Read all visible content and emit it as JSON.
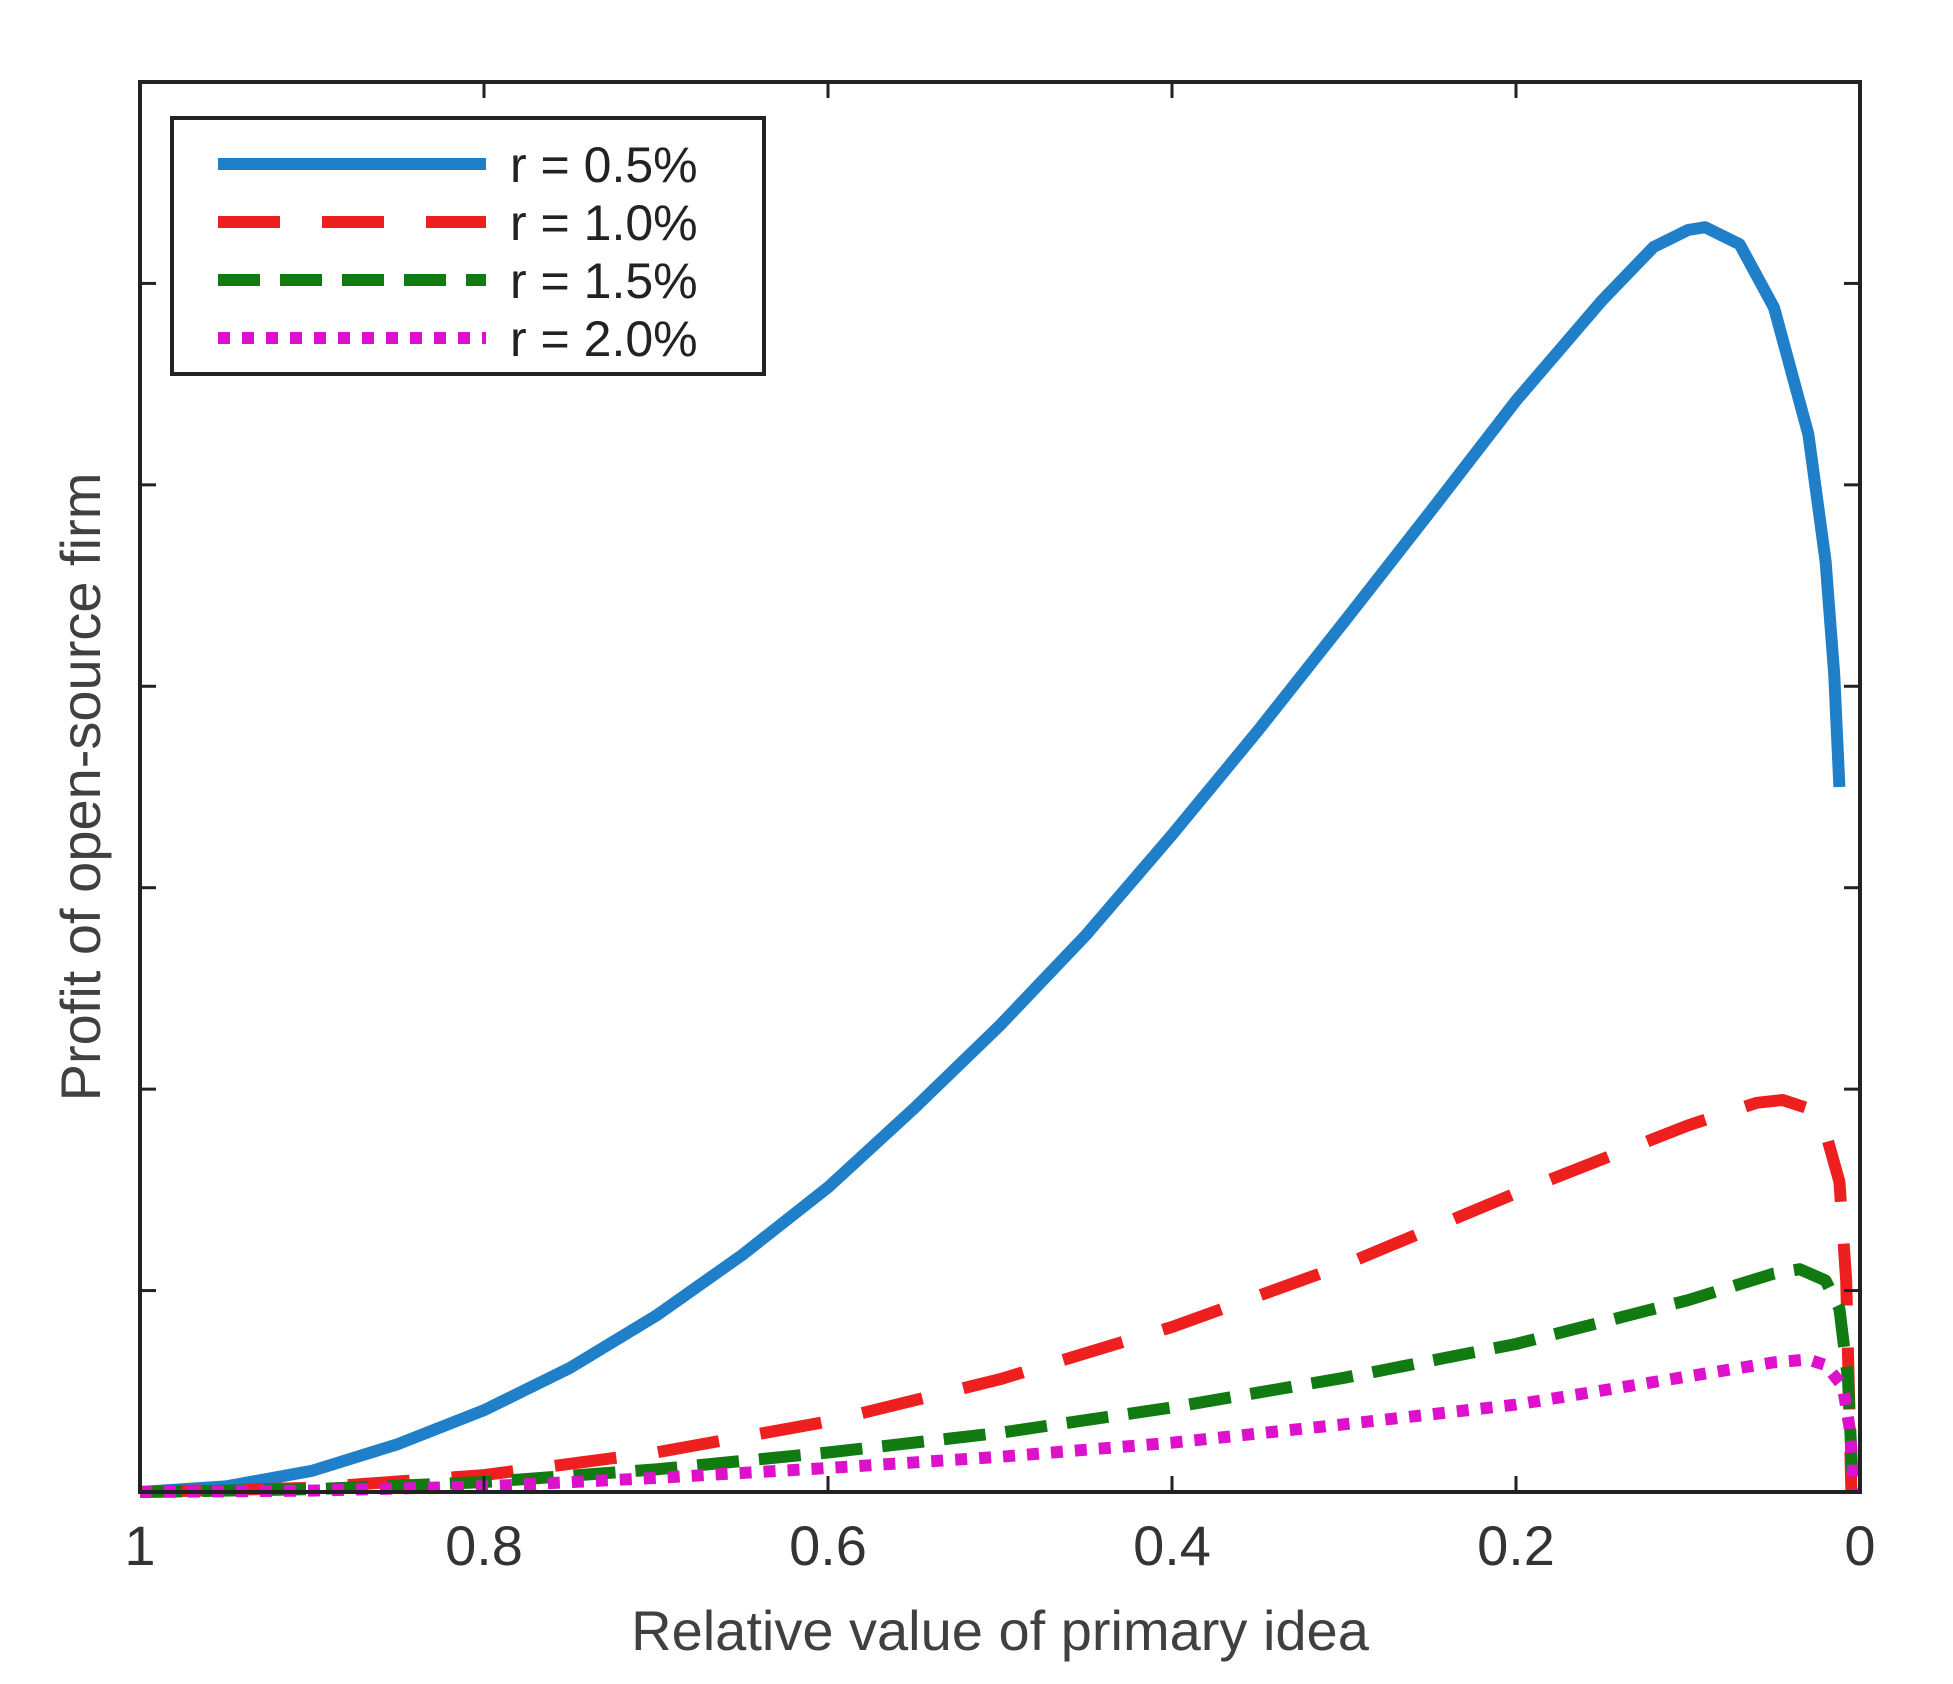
{
  "chart_data": {
    "type": "line",
    "title": "",
    "xlabel": "Relative value of primary idea",
    "ylabel": "Profit of open-source firm",
    "xlim": [
      1,
      0
    ],
    "x_reversed": true,
    "ylim": [
      0,
      1
    ],
    "y_ticks_unlabeled": true,
    "y_tick_count": 7,
    "grid": false,
    "legend_position": "top-left",
    "x_ticks": [
      {
        "value": 1,
        "label": "1"
      },
      {
        "value": 0.8,
        "label": "0.8"
      },
      {
        "value": 0.6,
        "label": "0.6"
      },
      {
        "value": 0.4,
        "label": "0.4"
      },
      {
        "value": 0.2,
        "label": "0.2"
      },
      {
        "value": 0,
        "label": "0"
      }
    ],
    "series": [
      {
        "name": "r = 0.5%",
        "color": "#1f7fc9",
        "style": "solid",
        "x": [
          1.0,
          0.95,
          0.9,
          0.85,
          0.8,
          0.75,
          0.7,
          0.65,
          0.6,
          0.55,
          0.5,
          0.45,
          0.4,
          0.35,
          0.3,
          0.25,
          0.2,
          0.15,
          0.12,
          0.1,
          0.09,
          0.07,
          0.05,
          0.03,
          0.02,
          0.015,
          0.012
        ],
        "values": [
          0.0,
          0.004,
          0.015,
          0.034,
          0.058,
          0.088,
          0.125,
          0.168,
          0.216,
          0.272,
          0.331,
          0.395,
          0.466,
          0.54,
          0.617,
          0.695,
          0.774,
          0.845,
          0.883,
          0.895,
          0.897,
          0.885,
          0.84,
          0.75,
          0.66,
          0.58,
          0.5
        ]
      },
      {
        "name": "r = 1.0%",
        "color": "#ee1f1f",
        "style": "dashed",
        "x": [
          1.0,
          0.9,
          0.8,
          0.7,
          0.6,
          0.5,
          0.4,
          0.3,
          0.2,
          0.1,
          0.06,
          0.045,
          0.03,
          0.02,
          0.012,
          0.008,
          0.005
        ],
        "values": [
          0.0,
          0.003,
          0.012,
          0.028,
          0.05,
          0.08,
          0.117,
          0.161,
          0.212,
          0.26,
          0.276,
          0.278,
          0.272,
          0.255,
          0.22,
          0.15,
          0.0
        ]
      },
      {
        "name": "r = 1.5%",
        "color": "#117a11",
        "style": "dashed",
        "x": [
          1.0,
          0.9,
          0.8,
          0.7,
          0.6,
          0.5,
          0.4,
          0.3,
          0.2,
          0.1,
          0.05,
          0.035,
          0.02,
          0.012,
          0.007,
          0.004
        ],
        "values": [
          0.0,
          0.002,
          0.007,
          0.016,
          0.028,
          0.042,
          0.06,
          0.081,
          0.105,
          0.136,
          0.155,
          0.158,
          0.15,
          0.13,
          0.08,
          0.0
        ]
      },
      {
        "name": "r = 2.0%",
        "color": "#dd11cc",
        "style": "dotted",
        "x": [
          1.0,
          0.9,
          0.8,
          0.7,
          0.6,
          0.5,
          0.4,
          0.3,
          0.2,
          0.1,
          0.05,
          0.03,
          0.02,
          0.01,
          0.006,
          0.003
        ],
        "values": [
          0.0,
          0.001,
          0.004,
          0.01,
          0.017,
          0.025,
          0.035,
          0.048,
          0.062,
          0.082,
          0.092,
          0.094,
          0.09,
          0.075,
          0.045,
          0.0
        ]
      }
    ]
  }
}
